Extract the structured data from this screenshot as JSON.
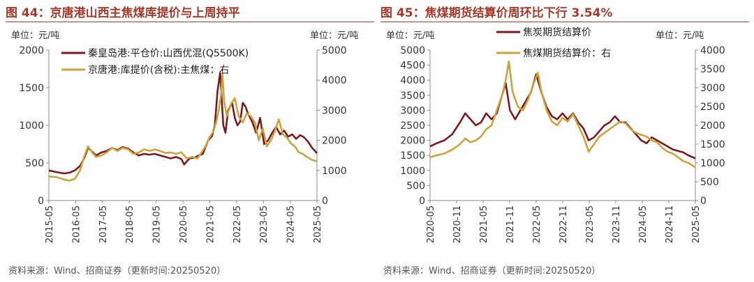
{
  "panels": [
    {
      "title": "图 44：京唐港山西主焦煤库提价与上周持平",
      "unit_left": "单位：元/吨",
      "unit_right": "单位：元/吨",
      "source": "资料来源：Wind、招商证券（更新时间:20250520）"
    },
    {
      "title": "图 45：焦煤期货结算价周环比下行 3.54%",
      "unit_left": "单位：元/吨",
      "unit_right": "单位：元/吨",
      "source": "资料来源：Wind、招商证券（更新时间:20250520）"
    }
  ],
  "chart_data": [
    {
      "type": "line",
      "title": "京唐港山西主焦煤库提价与上周持平",
      "x_ticks": [
        "2015-05",
        "2016-05",
        "2017-05",
        "2018-05",
        "2019-05",
        "2020-05",
        "2021-05",
        "2022-05",
        "2023-05",
        "2024-05",
        "2025-05"
      ],
      "x_range": [
        2015.33,
        2025.38
      ],
      "y_left": {
        "range": [
          0,
          2000
        ],
        "ticks": [
          0,
          500,
          1000,
          1500,
          2000
        ]
      },
      "y_right": {
        "range": [
          0,
          5000
        ],
        "ticks": [
          0,
          1000,
          2000,
          3000,
          4000,
          5000
        ]
      },
      "legend_position": "top-left",
      "colors": {
        "秦皇岛港:平仓价:山西优混(Q5500K)": "#7b1a20",
        "京唐港:库提价(含税):主焦煤：右": "#c9a33e"
      },
      "series": [
        {
          "name": "秦皇岛港:平仓价:山西优混(Q5500K)",
          "axis": "left",
          "color": "#7b1a20",
          "x": [
            2015.33,
            2015.6,
            2015.9,
            2016.1,
            2016.3,
            2016.5,
            2016.65,
            2016.8,
            2016.95,
            2017.1,
            2017.3,
            2017.5,
            2017.7,
            2017.9,
            2018.1,
            2018.3,
            2018.5,
            2018.7,
            2018.9,
            2019.1,
            2019.3,
            2019.5,
            2019.7,
            2019.9,
            2020.1,
            2020.3,
            2020.4,
            2020.6,
            2020.8,
            2020.95,
            2021.1,
            2021.3,
            2021.45,
            2021.55,
            2021.65,
            2021.75,
            2021.8,
            2021.87,
            2021.95,
            2022.05,
            2022.2,
            2022.3,
            2022.4,
            2022.5,
            2022.6,
            2022.7,
            2022.8,
            2022.95,
            2023.1,
            2023.25,
            2023.4,
            2023.55,
            2023.7,
            2023.85,
            2024.0,
            2024.15,
            2024.3,
            2024.45,
            2024.6,
            2024.75,
            2024.9,
            2025.05,
            2025.2,
            2025.38
          ],
          "y": [
            400,
            380,
            360,
            370,
            400,
            460,
            560,
            700,
            650,
            600,
            640,
            660,
            700,
            670,
            710,
            690,
            640,
            600,
            620,
            610,
            620,
            600,
            580,
            560,
            580,
            550,
            480,
            560,
            570,
            600,
            620,
            800,
            860,
            1000,
            1450,
            1700,
            1400,
            1000,
            900,
            1200,
            1300,
            1100,
            1000,
            1050,
            1300,
            1250,
            1150,
            1050,
            900,
            1100,
            750,
            800,
            900,
            980,
            880,
            930,
            850,
            880,
            820,
            870,
            840,
            780,
            700,
            630
          ]
        },
        {
          "name": "京唐港:库提价(含税):主焦煤：右",
          "axis": "right",
          "color": "#c9a33e",
          "x": [
            2015.33,
            2015.6,
            2015.9,
            2016.1,
            2016.3,
            2016.5,
            2016.65,
            2016.8,
            2016.95,
            2017.1,
            2017.3,
            2017.5,
            2017.7,
            2017.9,
            2018.1,
            2018.3,
            2018.5,
            2018.7,
            2018.9,
            2019.1,
            2019.3,
            2019.5,
            2019.7,
            2019.9,
            2020.1,
            2020.3,
            2020.5,
            2020.7,
            2020.9,
            2021.05,
            2021.2,
            2021.35,
            2021.5,
            2021.6,
            2021.7,
            2021.78,
            2021.84,
            2021.9,
            2022.0,
            2022.15,
            2022.3,
            2022.45,
            2022.6,
            2022.75,
            2022.9,
            2023.05,
            2023.2,
            2023.35,
            2023.5,
            2023.65,
            2023.8,
            2023.95,
            2024.1,
            2024.25,
            2024.4,
            2024.55,
            2024.7,
            2024.85,
            2025.0,
            2025.2,
            2025.38
          ],
          "y": [
            800,
            780,
            700,
            660,
            720,
            1000,
            1450,
            1800,
            1600,
            1450,
            1500,
            1600,
            1750,
            1650,
            1750,
            1700,
            1550,
            1600,
            1700,
            1650,
            1700,
            1650,
            1580,
            1600,
            1550,
            1600,
            1400,
            1450,
            1400,
            1600,
            1800,
            2100,
            2300,
            2600,
            3000,
            3500,
            4200,
            3300,
            2800,
            3200,
            3400,
            2800,
            2600,
            2900,
            2800,
            2600,
            2000,
            2400,
            1800,
            2000,
            2300,
            2700,
            2200,
            2100,
            1900,
            1800,
            1600,
            1550,
            1450,
            1350,
            1300
          ]
        }
      ]
    },
    {
      "type": "line",
      "title": "焦煤期货结算价周环比下行 3.54%",
      "x_ticks": [
        "2020-05",
        "2020-11",
        "2021-05",
        "2021-11",
        "2022-05",
        "2022-11",
        "2023-05",
        "2023-11",
        "2024-05",
        "2024-11",
        "2025-05"
      ],
      "x_range": [
        2020.33,
        2025.38
      ],
      "y_left": {
        "range": [
          0,
          5000
        ],
        "ticks": [
          0,
          500,
          1000,
          1500,
          2000,
          2500,
          3000,
          3500,
          4000,
          4500,
          5000
        ]
      },
      "y_right": {
        "range": [
          0,
          4000
        ],
        "ticks": [
          0,
          500,
          1000,
          1500,
          2000,
          2500,
          3000,
          3500,
          4000
        ]
      },
      "legend_position": "top-center",
      "colors": {
        "焦炭期货结算价": "#7b1a20",
        "焦煤期货结算价：右": "#c9a33e"
      },
      "series": [
        {
          "name": "焦炭期货结算价",
          "axis": "left",
          "color": "#7b1a20",
          "x": [
            2020.33,
            2020.45,
            2020.6,
            2020.75,
            2020.9,
            2021.0,
            2021.1,
            2021.2,
            2021.3,
            2021.4,
            2021.5,
            2021.6,
            2021.7,
            2021.77,
            2021.85,
            2021.95,
            2022.05,
            2022.15,
            2022.25,
            2022.35,
            2022.45,
            2022.55,
            2022.65,
            2022.75,
            2022.85,
            2022.95,
            2023.05,
            2023.15,
            2023.25,
            2023.35,
            2023.45,
            2023.55,
            2023.65,
            2023.75,
            2023.85,
            2023.95,
            2024.05,
            2024.15,
            2024.25,
            2024.35,
            2024.45,
            2024.55,
            2024.65,
            2024.75,
            2024.85,
            2024.95,
            2025.05,
            2025.15,
            2025.25,
            2025.38
          ],
          "y": [
            1800,
            1900,
            2000,
            2200,
            2600,
            2900,
            2700,
            2500,
            2600,
            2900,
            2700,
            2900,
            3500,
            3900,
            3000,
            2700,
            3000,
            3300,
            3600,
            4200,
            3600,
            3100,
            2800,
            2700,
            2900,
            2700,
            2900,
            2600,
            2400,
            2000,
            2100,
            2300,
            2500,
            2600,
            2800,
            2600,
            2600,
            2400,
            2200,
            2000,
            1900,
            2100,
            2000,
            1900,
            1800,
            1700,
            1650,
            1600,
            1500,
            1400
          ]
        },
        {
          "name": "焦煤期货结算价：右",
          "axis": "right",
          "color": "#c9a33e",
          "x": [
            2020.33,
            2020.45,
            2020.6,
            2020.75,
            2020.9,
            2021.0,
            2021.1,
            2021.2,
            2021.3,
            2021.4,
            2021.5,
            2021.6,
            2021.7,
            2021.77,
            2021.83,
            2021.9,
            2022.0,
            2022.1,
            2022.2,
            2022.3,
            2022.38,
            2022.45,
            2022.55,
            2022.65,
            2022.75,
            2022.85,
            2022.95,
            2023.05,
            2023.15,
            2023.25,
            2023.35,
            2023.45,
            2023.55,
            2023.65,
            2023.75,
            2023.85,
            2023.95,
            2024.05,
            2024.15,
            2024.25,
            2024.35,
            2024.45,
            2024.55,
            2024.65,
            2024.75,
            2024.85,
            2024.95,
            2025.05,
            2025.15,
            2025.25,
            2025.38
          ],
          "y": [
            1150,
            1200,
            1250,
            1350,
            1500,
            1650,
            1550,
            1600,
            1700,
            1900,
            2000,
            2400,
            2800,
            3200,
            3700,
            2900,
            2500,
            2400,
            2700,
            3100,
            3400,
            2900,
            2400,
            2100,
            2000,
            2200,
            2100,
            2300,
            2000,
            1700,
            1300,
            1500,
            1700,
            1800,
            1900,
            2000,
            2100,
            2050,
            1900,
            1800,
            1750,
            1700,
            1600,
            1550,
            1400,
            1300,
            1250,
            1150,
            1050,
            1000,
            880
          ]
        }
      ]
    }
  ]
}
